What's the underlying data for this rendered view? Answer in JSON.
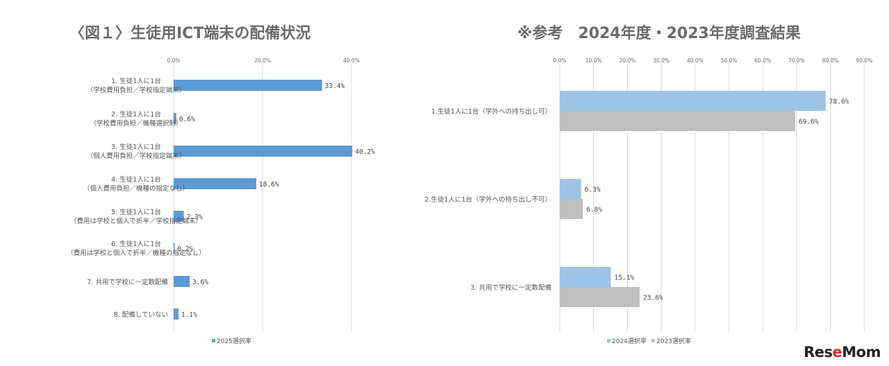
{
  "colors": {
    "blue_2025": "#5b9bd5",
    "blue_2024": "#9dc3e6",
    "gray_2023": "#bfbfbf",
    "grid": "#d9d9d9"
  },
  "left_title": "〈図１〉生徒用ICT端末の配備状況",
  "right_title": "※参考　2024年度・2023年度調査結果",
  "logo": "ReseMom",
  "chart_data": [
    {
      "type": "bar",
      "orientation": "horizontal",
      "title": "〈図１〉生徒用ICT端末の配備状況",
      "categories": [
        [
          "1. 生徒1人に1台",
          "（学校費用負担／学校指定端末）"
        ],
        [
          "2. 生徒1人に1台",
          "（学校費用負担／機種選択制）"
        ],
        [
          "3. 生徒1人に1台",
          "（個人費用負担／学校指定端末）"
        ],
        [
          "4. 生徒1人に1台",
          "（個人費用負担／機種の指定なし）"
        ],
        [
          "5. 生徒1人に1台",
          "（費用は学校と個人で折半／学校指定端末）"
        ],
        [
          "6. 生徒1人に1台",
          "（費用は学校と個人で折半／機種の指定なし）"
        ],
        [
          "7. 共用で学校に一定数配備"
        ],
        [
          "8. 配備していない"
        ]
      ],
      "series": [
        {
          "name": "2025選択率",
          "values": [
            33.4,
            0.6,
            40.2,
            18.6,
            2.3,
            0.2,
            3.6,
            1.1
          ],
          "labels": [
            "33.4%",
            "0.6%",
            "40.2%",
            "18.6%",
            "2.3%",
            "0.2%",
            "3.6%",
            "1.1%"
          ]
        }
      ],
      "xlim": [
        0,
        40
      ],
      "ticks": [
        "0.0%",
        "20.0%",
        "40.0%"
      ],
      "tick_values": [
        0,
        20,
        40
      ],
      "legend": "bottom"
    },
    {
      "type": "bar",
      "orientation": "horizontal",
      "title": "※参考　2024年度・2023年度調査結果",
      "categories": [
        [
          "1.生徒1人に1台（学外への持ち出し可）"
        ],
        [
          "2.生徒1人に1台（学外への持ち出し不可）"
        ],
        [
          "3. 共用で学校に一定数配備"
        ]
      ],
      "series": [
        {
          "name": "2024選択率",
          "values": [
            78.6,
            6.3,
            15.1
          ],
          "labels": [
            "78.6%",
            "6.3%",
            "15.1%"
          ]
        },
        {
          "name": "2023選択率",
          "values": [
            69.6,
            6.8,
            23.6
          ],
          "labels": [
            "69.6%",
            "6.8%",
            "23.6%"
          ]
        }
      ],
      "xlim": [
        0,
        90
      ],
      "ticks": [
        "0.0%",
        "10.0%",
        "20.0%",
        "30.0%",
        "40.0%",
        "50.0%",
        "60.0%",
        "70.0%",
        "80.0%",
        "90.0%"
      ],
      "tick_values": [
        0,
        10,
        20,
        30,
        40,
        50,
        60,
        70,
        80,
        90
      ],
      "legend": "bottom"
    }
  ]
}
